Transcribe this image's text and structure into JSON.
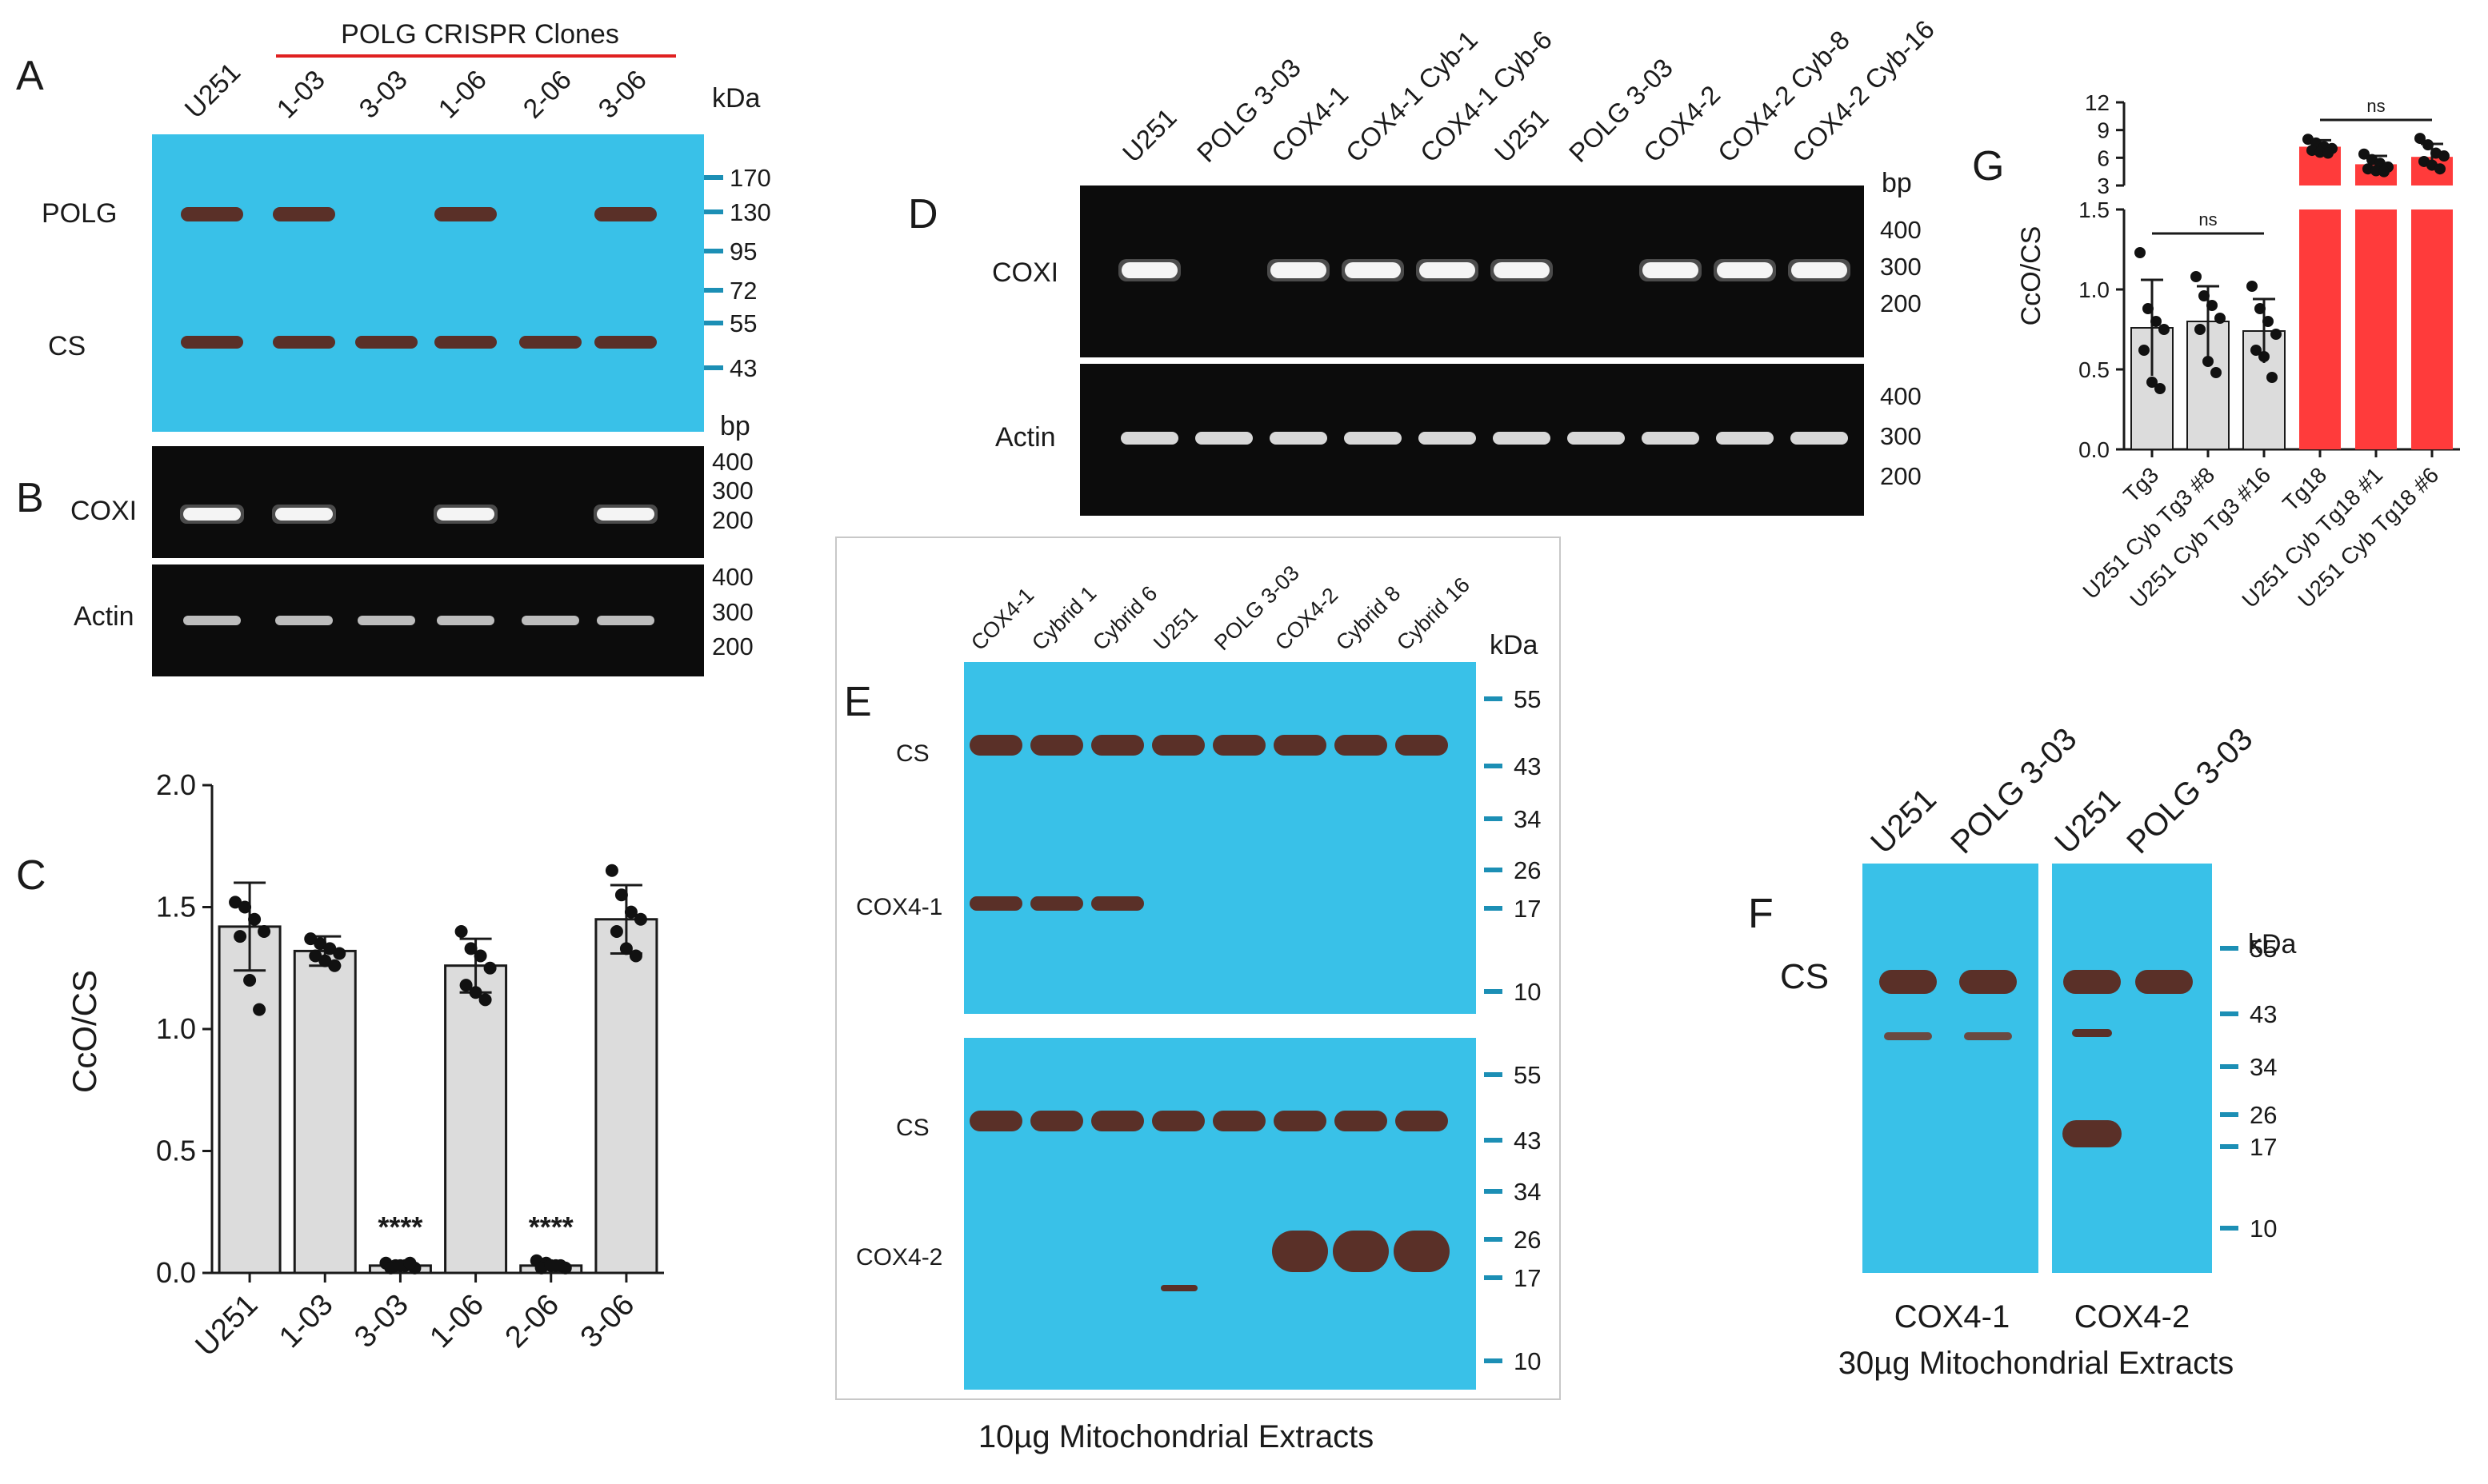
{
  "panels": {
    "A": {
      "letter": "A",
      "group_label": "POLG CRISPR Clones",
      "lanes": [
        "U251",
        "1-03",
        "3-03",
        "1-06",
        "2-06",
        "3-06"
      ],
      "unit": "kDa",
      "rows": [
        "POLG",
        "CS"
      ],
      "markers": [
        "170",
        "130",
        "95",
        "72",
        "55",
        "43"
      ],
      "colors": {
        "membrane": "#39c1e8",
        "band": "#5a3028",
        "group_line": "#e02020"
      },
      "polg_present": [
        true,
        true,
        false,
        true,
        false,
        true
      ],
      "cs_present": [
        true,
        true,
        true,
        true,
        true,
        true
      ]
    },
    "B": {
      "letter": "B",
      "unit": "bp",
      "rows": [
        "COXI",
        "Actin"
      ],
      "markers": [
        "400",
        "300",
        "200"
      ],
      "coxi_present": [
        true,
        true,
        false,
        true,
        false,
        true
      ],
      "actin_present": [
        true,
        true,
        true,
        true,
        true,
        true
      ]
    },
    "C": {
      "letter": "C",
      "significance": "****"
    },
    "D": {
      "letter": "D",
      "lanes": [
        "U251",
        "POLG 3-03",
        "COX4-1",
        "COX4-1 Cyb-1",
        "COX4-1 Cyb-6",
        "U251",
        "POLG 3-03",
        "COX4-2",
        "COX4-2 Cyb-8",
        "COX4-2 Cyb-16"
      ],
      "unit": "bp",
      "rows": [
        "COXI",
        "Actin"
      ],
      "markers": [
        "400",
        "300",
        "200"
      ],
      "coxi_present": [
        true,
        false,
        true,
        true,
        true,
        true,
        false,
        true,
        true,
        true
      ],
      "actin_present": [
        true,
        true,
        true,
        true,
        true,
        true,
        true,
        true,
        true,
        true
      ]
    },
    "E": {
      "letter": "E",
      "lanes": [
        "COX4-1",
        "Cybrid 1",
        "Cybrid 6",
        "U251",
        "POLG 3-03",
        "COX4-2",
        "Cybrid 8",
        "Cybrid 16"
      ],
      "unit": "kDa",
      "top_rows": [
        "CS",
        "COX4-1"
      ],
      "bottom_rows": [
        "CS",
        "COX4-2"
      ],
      "markers": [
        "55",
        "43",
        "34",
        "26",
        "17",
        "10"
      ],
      "caption": "10µg Mitochondrial Extracts",
      "cox41_present": [
        true,
        true,
        true,
        false,
        false,
        false,
        false,
        false
      ],
      "cox42_present": [
        false,
        false,
        false,
        false,
        false,
        true,
        true,
        true
      ]
    },
    "F": {
      "letter": "F",
      "lanes": [
        "U251",
        "POLG 3-03",
        "U251",
        "POLG 3-03"
      ],
      "unit": "kDa",
      "row": "CS",
      "markers": [
        "55",
        "43",
        "34",
        "26",
        "17",
        "10"
      ],
      "blot_labels": [
        "COX4-1",
        "COX4-2"
      ],
      "caption": "30µg Mitochondrial Extracts"
    },
    "G": {
      "letter": "G",
      "significance": "ns",
      "colors": {
        "grey_bar": "#dcdcdc",
        "red_bar": "#ff3b3b"
      }
    }
  },
  "chart_data": [
    {
      "panel": "C",
      "type": "bar",
      "categories": [
        "U251",
        "1-03",
        "3-03",
        "1-06",
        "2-06",
        "3-06"
      ],
      "values": [
        1.42,
        1.32,
        0.03,
        1.26,
        0.03,
        1.45
      ],
      "errors": [
        0.18,
        0.06,
        0.01,
        0.11,
        0.01,
        0.14
      ],
      "points": [
        [
          1.52,
          1.5,
          1.45,
          1.4,
          1.38,
          1.2,
          1.08
        ],
        [
          1.37,
          1.35,
          1.33,
          1.31,
          1.3,
          1.28,
          1.26
        ],
        [
          0.04,
          0.03,
          0.03,
          0.02,
          0.02,
          0.03,
          0.04
        ],
        [
          1.4,
          1.33,
          1.3,
          1.25,
          1.18,
          1.15,
          1.12
        ],
        [
          0.05,
          0.04,
          0.03,
          0.02,
          0.02,
          0.03,
          0.03
        ],
        [
          1.65,
          1.55,
          1.48,
          1.45,
          1.4,
          1.33,
          1.3
        ]
      ],
      "xlabel": "",
      "ylabel": "CcO/CS",
      "yticks": [
        "0.0",
        "0.5",
        "1.0",
        "1.5",
        "2.0"
      ],
      "ylim": [
        0,
        2.0
      ],
      "annotations": [
        {
          "category": "3-03",
          "text": "****"
        },
        {
          "category": "2-06",
          "text": "****"
        }
      ],
      "grid": false
    },
    {
      "panel": "G",
      "type": "bar",
      "categories": [
        "Tg3",
        "U251 Cyb Tg3 #8",
        "U251 Cyb Tg3 #16",
        "Tg18",
        "U251 Cyb Tg18 #1",
        "U251 Cyb Tg18 #6"
      ],
      "values": [
        0.76,
        0.8,
        0.74,
        7.2,
        5.3,
        6.1
      ],
      "errors": [
        0.3,
        0.22,
        0.2,
        0.7,
        0.9,
        1.4
      ],
      "points": [
        [
          1.23,
          0.88,
          0.8,
          0.75,
          0.62,
          0.42,
          0.38
        ],
        [
          1.08,
          0.96,
          0.9,
          0.82,
          0.75,
          0.55,
          0.48
        ],
        [
          1.02,
          0.88,
          0.8,
          0.72,
          0.62,
          0.58,
          0.45
        ],
        [
          8.0,
          7.6,
          7.2,
          7.0,
          6.8,
          6.6,
          6.5
        ],
        [
          6.4,
          5.8,
          5.4,
          5.0,
          4.8,
          4.6,
          4.5
        ],
        [
          8.1,
          7.4,
          6.5,
          6.2,
          5.6,
          5.2,
          4.8
        ]
      ],
      "ylabel": "CcO/CS",
      "yticks_lower": [
        "0.0",
        "0.5",
        "1.0",
        "1.5"
      ],
      "yticks_upper": [
        "3",
        "6",
        "9",
        "12"
      ],
      "ylim_lower": [
        0,
        1.5
      ],
      "ylim_upper": [
        3,
        12
      ],
      "bar_colors": [
        "#dcdcdc",
        "#dcdcdc",
        "#dcdcdc",
        "#ff3b3b",
        "#ff3b3b",
        "#ff3b3b"
      ],
      "annotations": [
        {
          "between": [
            "Tg3",
            "U251 Cyb Tg3 #16"
          ],
          "text": "ns"
        },
        {
          "between": [
            "Tg18",
            "U251 Cyb Tg18 #6"
          ],
          "text": "ns"
        }
      ],
      "grid": false
    }
  ]
}
